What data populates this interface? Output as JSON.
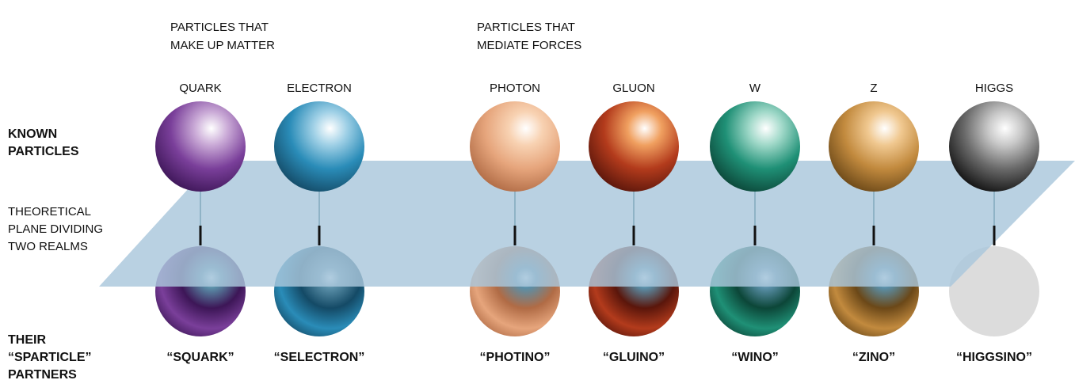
{
  "headings": {
    "matter": [
      "PARTICLES THAT",
      "MAKE UP MATTER"
    ],
    "forces": [
      "PARTICLES THAT",
      "MEDIATE FORCES"
    ]
  },
  "row_labels": {
    "known": [
      "KNOWN",
      "PARTICLES"
    ],
    "plane": [
      "THEORETICAL",
      "PLANE DIVIDING",
      "TWO REALMS"
    ],
    "partners": [
      "THEIR",
      "“SPARTICLE”",
      "PARTNERS"
    ]
  },
  "particles": [
    {
      "name": "QUARK",
      "partner": "“SQUARK”"
    },
    {
      "name": "ELECTRON",
      "partner": "“SELECTRON”"
    },
    {
      "name": "PHOTON",
      "partner": "“PHOTINO”"
    },
    {
      "name": "GLUON",
      "partner": "“GLUINO”"
    },
    {
      "name": "W",
      "partner": "“WINO”"
    },
    {
      "name": "Z",
      "partner": "“ZINO”"
    },
    {
      "name": "HIGGS",
      "partner": "“HIGGSINO”"
    }
  ]
}
